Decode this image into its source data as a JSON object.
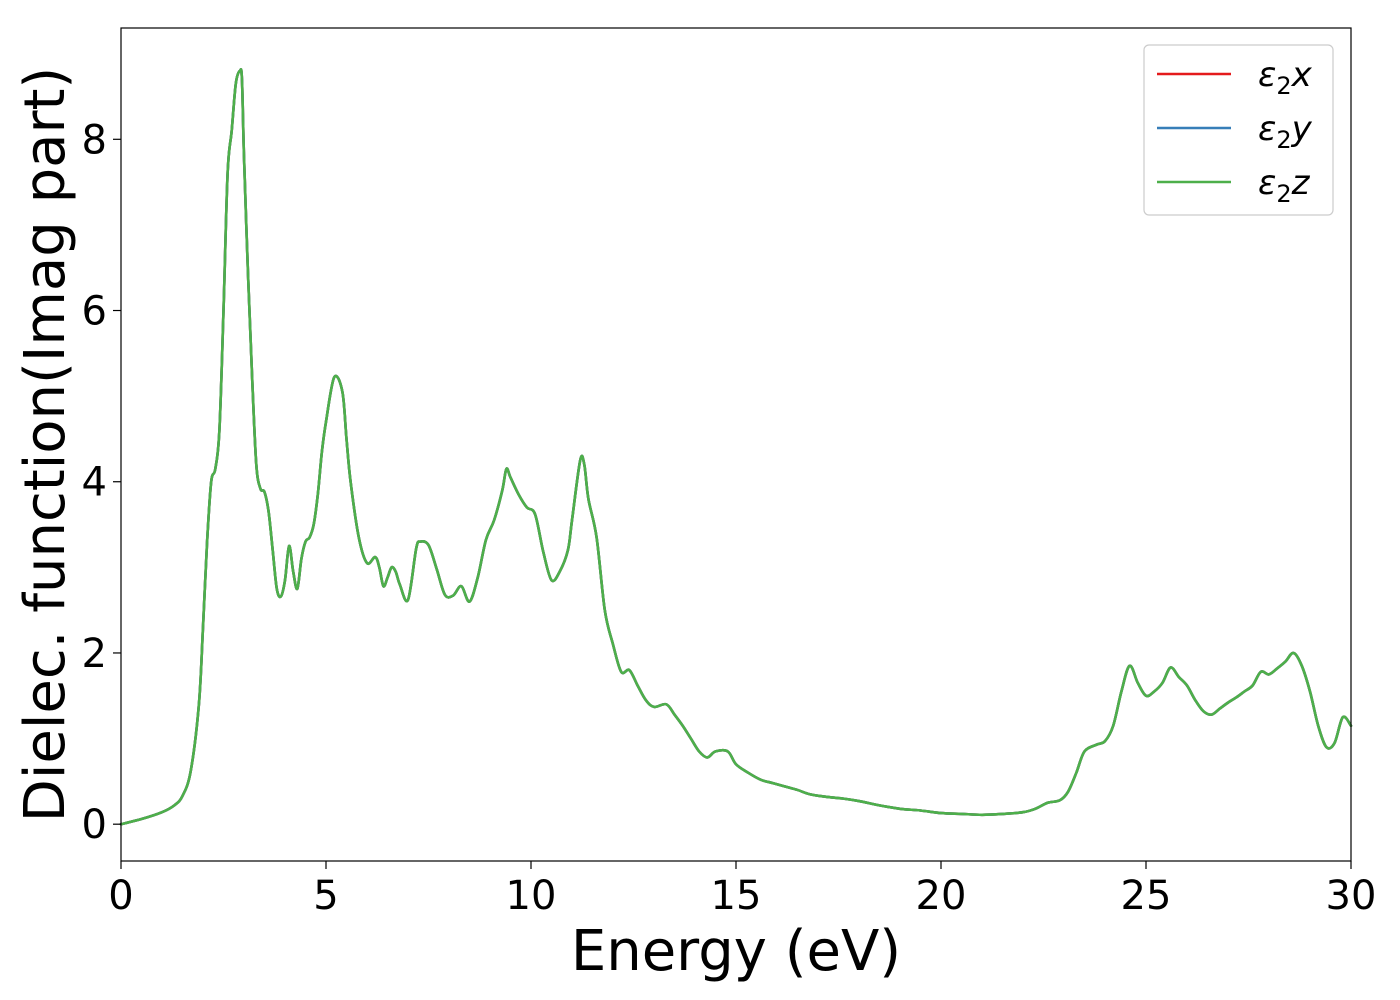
{
  "chart_data": {
    "type": "line",
    "title": "",
    "xlabel": "Energy (eV)",
    "ylabel": "Dielec. function(Imag part)",
    "xlim": [
      0,
      30
    ],
    "ylim": [
      -0.43,
      9.3
    ],
    "xticks": [
      0,
      5,
      10,
      15,
      20,
      25,
      30
    ],
    "yticks": [
      0,
      2,
      4,
      6,
      8
    ],
    "grid": false,
    "legend_position": "top-right",
    "series": [
      {
        "name": "ε₂x",
        "legend_base": "ε",
        "legend_sub": "2",
        "legend_suffix": "x",
        "color": "#e41a1c"
      },
      {
        "name": "ε₂y",
        "legend_base": "ε",
        "legend_sub": "2",
        "legend_suffix": "y",
        "color": "#377eb8"
      },
      {
        "name": "ε₂z",
        "legend_base": "ε",
        "legend_sub": "2",
        "legend_suffix": "z",
        "color": "#4daf4a"
      }
    ],
    "x": [
      0,
      0.5,
      1.0,
      1.3,
      1.5,
      1.7,
      1.9,
      2.0,
      2.1,
      2.2,
      2.3,
      2.4,
      2.5,
      2.6,
      2.7,
      2.8,
      2.9,
      2.95,
      3.0,
      3.1,
      3.2,
      3.3,
      3.4,
      3.5,
      3.6,
      3.7,
      3.8,
      3.9,
      4.0,
      4.1,
      4.2,
      4.3,
      4.4,
      4.5,
      4.6,
      4.7,
      4.8,
      4.9,
      5.0,
      5.2,
      5.4,
      5.5,
      5.6,
      5.8,
      6.0,
      6.2,
      6.3,
      6.4,
      6.5,
      6.6,
      6.7,
      6.8,
      7.0,
      7.2,
      7.3,
      7.5,
      7.7,
      7.9,
      8.1,
      8.3,
      8.5,
      8.7,
      8.9,
      9.1,
      9.3,
      9.4,
      9.5,
      9.7,
      9.9,
      10.1,
      10.3,
      10.5,
      10.7,
      10.9,
      11.0,
      11.2,
      11.3,
      11.4,
      11.6,
      11.8,
      12.0,
      12.2,
      12.4,
      12.6,
      12.8,
      13.0,
      13.3,
      13.5,
      13.7,
      13.9,
      14.1,
      14.3,
      14.5,
      14.8,
      15.0,
      15.3,
      15.6,
      15.9,
      16.2,
      16.5,
      16.8,
      17.2,
      17.6,
      18.0,
      18.5,
      19.0,
      19.5,
      20.0,
      20.5,
      21.0,
      21.5,
      22.0,
      22.3,
      22.6,
      22.9,
      23.1,
      23.3,
      23.5,
      23.8,
      24.0,
      24.2,
      24.4,
      24.6,
      24.8,
      25.0,
      25.2,
      25.4,
      25.6,
      25.8,
      26.0,
      26.2,
      26.4,
      26.6,
      26.8,
      27.0,
      27.2,
      27.4,
      27.6,
      27.8,
      28.0,
      28.2,
      28.4,
      28.6,
      28.8,
      29.0,
      29.2,
      29.4,
      29.6,
      29.8,
      30.0
    ],
    "y": [
      0.0,
      0.06,
      0.14,
      0.22,
      0.33,
      0.62,
      1.4,
      2.3,
      3.3,
      4.0,
      4.15,
      4.6,
      6.0,
      7.6,
      8.1,
      8.65,
      8.8,
      8.7,
      7.8,
      6.4,
      5.2,
      4.2,
      3.92,
      3.88,
      3.65,
      3.2,
      2.75,
      2.66,
      2.85,
      3.25,
      2.95,
      2.75,
      3.1,
      3.3,
      3.35,
      3.5,
      3.85,
      4.35,
      4.7,
      5.22,
      5.05,
      4.5,
      4.0,
      3.35,
      3.05,
      3.12,
      3.0,
      2.78,
      2.88,
      3.0,
      2.95,
      2.8,
      2.62,
      3.22,
      3.3,
      3.26,
      2.98,
      2.68,
      2.67,
      2.78,
      2.6,
      2.88,
      3.32,
      3.55,
      3.9,
      4.15,
      4.05,
      3.85,
      3.7,
      3.62,
      3.18,
      2.85,
      2.95,
      3.2,
      3.55,
      4.25,
      4.2,
      3.8,
      3.35,
      2.5,
      2.1,
      1.78,
      1.8,
      1.62,
      1.45,
      1.37,
      1.4,
      1.28,
      1.15,
      1.0,
      0.85,
      0.78,
      0.85,
      0.85,
      0.7,
      0.6,
      0.52,
      0.48,
      0.44,
      0.4,
      0.35,
      0.32,
      0.3,
      0.27,
      0.22,
      0.18,
      0.16,
      0.13,
      0.12,
      0.11,
      0.12,
      0.14,
      0.18,
      0.25,
      0.28,
      0.38,
      0.6,
      0.85,
      0.93,
      0.97,
      1.15,
      1.55,
      1.85,
      1.65,
      1.5,
      1.55,
      1.65,
      1.83,
      1.72,
      1.62,
      1.45,
      1.32,
      1.28,
      1.35,
      1.42,
      1.48,
      1.55,
      1.62,
      1.78,
      1.75,
      1.82,
      1.9,
      2.0,
      1.85,
      1.55,
      1.15,
      0.9,
      0.95,
      1.25,
      1.15
    ]
  }
}
